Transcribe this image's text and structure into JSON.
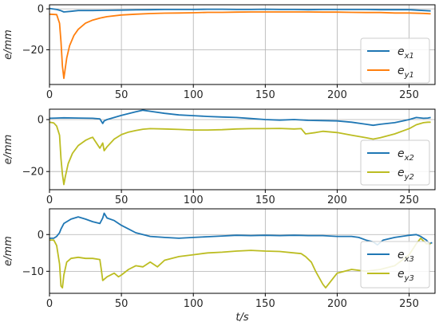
{
  "chart_data": [
    {
      "type": "line",
      "xlabel": "",
      "ylabel": "e/mm",
      "xlim": [
        0,
        268
      ],
      "ylim": [
        -37,
        2
      ],
      "xticks": [
        "0",
        "50",
        "100",
        "150",
        "200",
        "250"
      ],
      "xtick_values": [
        0,
        50,
        100,
        150,
        200,
        250
      ],
      "yticks": [
        "0",
        "−20"
      ],
      "ytick_values": [
        0,
        -20
      ],
      "grid": true,
      "legend": "right",
      "series": [
        {
          "name": "e_x1",
          "legend_base": "e",
          "legend_sub": "x1",
          "color": "#1f77b4",
          "x": [
            0,
            5,
            8,
            10,
            15,
            20,
            30,
            40,
            50,
            60,
            70,
            80,
            90,
            100,
            110,
            120,
            130,
            140,
            150,
            160,
            170,
            180,
            190,
            200,
            210,
            220,
            230,
            240,
            250,
            260,
            265
          ],
          "y": [
            0.2,
            -0.3,
            -0.9,
            -1.5,
            -1.2,
            -0.8,
            -0.8,
            -0.7,
            -0.6,
            -0.5,
            -0.4,
            -0.3,
            -0.3,
            -0.3,
            -0.2,
            -0.2,
            -0.3,
            -0.3,
            -0.2,
            -0.3,
            -0.3,
            -0.4,
            -0.3,
            -0.3,
            -0.3,
            -0.3,
            -0.4,
            -0.4,
            -0.4,
            -0.8,
            -1.0
          ]
        },
        {
          "name": "e_y1",
          "legend_base": "e",
          "legend_sub": "y1",
          "color": "#ff7f0e",
          "x": [
            0,
            5,
            7,
            8,
            9,
            10,
            12,
            14,
            17,
            20,
            25,
            30,
            35,
            40,
            50,
            60,
            70,
            80,
            90,
            100,
            110,
            120,
            130,
            140,
            150,
            160,
            170,
            180,
            190,
            200,
            210,
            220,
            230,
            240,
            250,
            260,
            265
          ],
          "y": [
            -2.6,
            -2.8,
            -7,
            -16,
            -28,
            -34,
            -24,
            -18,
            -13,
            -10,
            -7,
            -5.5,
            -4.5,
            -3.8,
            -3.0,
            -2.6,
            -2.3,
            -2.1,
            -2.0,
            -1.9,
            -1.7,
            -1.7,
            -1.6,
            -1.5,
            -1.5,
            -1.5,
            -1.5,
            -1.5,
            -1.6,
            -1.6,
            -1.7,
            -1.8,
            -1.8,
            -2.0,
            -2.0,
            -2.2,
            -2.4
          ]
        }
      ]
    },
    {
      "type": "line",
      "xlabel": "",
      "ylabel": "e/mm",
      "xlim": [
        0,
        268
      ],
      "ylim": [
        -27,
        4
      ],
      "xticks": [
        "0",
        "50",
        "100",
        "150",
        "200",
        "250"
      ],
      "xtick_values": [
        0,
        50,
        100,
        150,
        200,
        250
      ],
      "yticks": [
        "0",
        "−20"
      ],
      "ytick_values": [
        0,
        -20
      ],
      "grid": true,
      "legend": "right",
      "series": [
        {
          "name": "e_x2",
          "legend_base": "e",
          "legend_sub": "x2",
          "color": "#1f77b4",
          "x": [
            0,
            5,
            10,
            20,
            30,
            35,
            37,
            38,
            40,
            45,
            50,
            55,
            60,
            65,
            70,
            80,
            90,
            100,
            110,
            120,
            130,
            140,
            150,
            160,
            170,
            180,
            190,
            200,
            210,
            220,
            225,
            230,
            240,
            250,
            255,
            260,
            263,
            265
          ],
          "y": [
            0.5,
            0.6,
            0.7,
            0.6,
            0.5,
            0.3,
            -1.5,
            -0.5,
            0.0,
            0.8,
            1.6,
            2.3,
            3.0,
            3.6,
            3.2,
            2.4,
            1.8,
            1.5,
            1.2,
            1.0,
            0.8,
            0.4,
            0.0,
            -0.2,
            0.0,
            -0.3,
            -0.4,
            -0.5,
            -1.0,
            -1.8,
            -2.2,
            -1.8,
            -1.2,
            0.0,
            0.8,
            0.5,
            0.6,
            0.8
          ]
        },
        {
          "name": "e_y2",
          "legend_base": "e",
          "legend_sub": "y2",
          "color": "#bcbd22",
          "x": [
            0,
            3,
            5,
            7,
            8,
            9,
            10,
            11,
            13,
            16,
            20,
            25,
            28,
            30,
            32,
            35,
            37,
            38,
            40,
            45,
            50,
            55,
            60,
            65,
            70,
            80,
            90,
            100,
            110,
            120,
            130,
            140,
            150,
            160,
            170,
            175,
            178,
            185,
            190,
            200,
            210,
            220,
            225,
            230,
            240,
            250,
            255,
            260,
            263,
            265
          ],
          "y": [
            -1.0,
            -1.3,
            -2.5,
            -6,
            -15,
            -21,
            -25,
            -22,
            -17,
            -13,
            -10,
            -8,
            -7.2,
            -6.8,
            -8.5,
            -11,
            -9.0,
            -12,
            -10.5,
            -7.5,
            -5.8,
            -4.8,
            -4.2,
            -3.7,
            -3.5,
            -3.6,
            -3.8,
            -4.0,
            -4.0,
            -3.9,
            -3.6,
            -3.5,
            -3.5,
            -3.4,
            -3.6,
            -3.5,
            -5.5,
            -5.0,
            -4.5,
            -5.0,
            -6.0,
            -7.0,
            -7.5,
            -7.0,
            -5.5,
            -3.5,
            -2.0,
            -1.2,
            -1.0,
            -1.0
          ]
        }
      ]
    },
    {
      "type": "line",
      "xlabel": "t/s",
      "ylabel": "e/mm",
      "xlim": [
        0,
        268
      ],
      "ylim": [
        -16,
        7
      ],
      "xticks": [
        "0",
        "50",
        "100",
        "150",
        "200",
        "250"
      ],
      "xtick_values": [
        0,
        50,
        100,
        150,
        200,
        250
      ],
      "yticks": [
        "0",
        "−10"
      ],
      "ytick_values": [
        0,
        -10
      ],
      "grid": true,
      "legend": "right",
      "series": [
        {
          "name": "e_x3",
          "legend_base": "e",
          "legend_sub": "x3",
          "color": "#1f77b4",
          "x": [
            0,
            3,
            5,
            7,
            8,
            10,
            15,
            20,
            25,
            30,
            35,
            37,
            38,
            40,
            45,
            50,
            55,
            60,
            70,
            80,
            90,
            100,
            110,
            120,
            130,
            140,
            150,
            160,
            170,
            180,
            190,
            200,
            210,
            215,
            220,
            225,
            228,
            232,
            240,
            250,
            255,
            258,
            262,
            264,
            266
          ],
          "y": [
            -1.0,
            -1.0,
            -0.5,
            0.5,
            1.5,
            3.0,
            4.2,
            4.8,
            4.2,
            3.5,
            3.0,
            4.5,
            5.8,
            4.5,
            3.8,
            2.5,
            1.5,
            0.5,
            -0.5,
            -0.8,
            -1.0,
            -0.8,
            -0.6,
            -0.4,
            -0.2,
            -0.3,
            -0.2,
            -0.3,
            -0.2,
            -0.3,
            -0.3,
            -0.5,
            -0.5,
            -0.8,
            -1.5,
            -2.0,
            -2.8,
            -1.5,
            -0.8,
            -0.2,
            0.0,
            -0.5,
            -1.5,
            -2.5,
            -2.2
          ]
        },
        {
          "name": "e_y3",
          "legend_base": "e",
          "legend_sub": "y3",
          "color": "#bcbd22",
          "x": [
            0,
            3,
            5,
            7,
            8,
            9,
            10,
            12,
            15,
            20,
            25,
            30,
            35,
            36,
            37,
            40,
            45,
            48,
            50,
            55,
            60,
            65,
            70,
            75,
            80,
            90,
            100,
            110,
            120,
            130,
            140,
            150,
            160,
            170,
            175,
            178,
            182,
            185,
            190,
            192,
            195,
            200,
            210,
            220,
            230,
            240,
            250,
            255,
            258,
            262,
            265
          ],
          "y": [
            -1.5,
            -1.5,
            -3,
            -8,
            -14,
            -14.5,
            -11,
            -7.5,
            -6.5,
            -6.2,
            -6.5,
            -6.5,
            -6.8,
            -9.5,
            -12.5,
            -11.5,
            -10.5,
            -11.5,
            -11.0,
            -9.5,
            -8.5,
            -8.8,
            -7.5,
            -8.8,
            -7.0,
            -6.0,
            -5.5,
            -5.0,
            -4.8,
            -4.5,
            -4.3,
            -4.5,
            -4.6,
            -5.0,
            -5.2,
            -6.0,
            -7.5,
            -10.0,
            -13.5,
            -14.5,
            -13.0,
            -10.5,
            -9.5,
            -10.0,
            -9.5,
            -8.5,
            -5.5,
            -2.5,
            -1.0,
            -2.5,
            -2.5
          ]
        }
      ]
    }
  ]
}
